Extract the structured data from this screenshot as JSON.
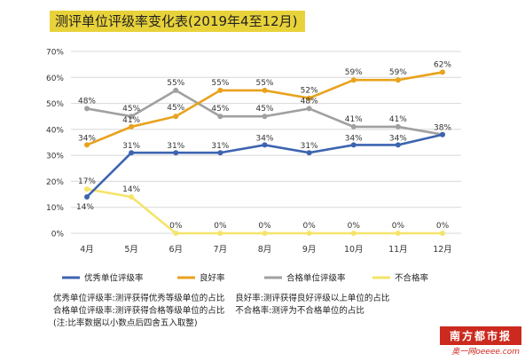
{
  "title": "测评单位评级率变化表(2019年4至12月)",
  "chart_data": {
    "type": "line",
    "title": "测评单位评级率变化表(2019年4至12月)",
    "categories": [
      "4月",
      "5月",
      "6月",
      "7月",
      "8月",
      "9月",
      "10月",
      "11月",
      "12月"
    ],
    "y_ticks": [
      "0%",
      "10%",
      "20%",
      "30%",
      "40%",
      "50%",
      "60%",
      "70%"
    ],
    "ylim": [
      0,
      70
    ],
    "legend_position": "bottom",
    "series": [
      {
        "name": "优秀单位评级率",
        "color": "#3d64b0",
        "values": [
          14,
          31,
          31,
          31,
          34,
          31,
          34,
          34,
          38
        ],
        "labels": [
          "14%",
          "31%",
          "31%",
          "31%",
          "34%",
          "31%",
          "34%",
          "34%",
          "38%"
        ]
      },
      {
        "name": "良好率",
        "color": "#e8a21c",
        "values": [
          34,
          41,
          45,
          55,
          55,
          52,
          59,
          59,
          62
        ],
        "labels": [
          "34%",
          "41%",
          "45%",
          "55%",
          "55%",
          "52%",
          "59%",
          "59%",
          "62%"
        ]
      },
      {
        "name": "合格单位评级率",
        "color": "#a0a0a0",
        "values": [
          48,
          45,
          55,
          45,
          45,
          48,
          41,
          41,
          38
        ],
        "labels": [
          "48%",
          "45%",
          "55%",
          "45%",
          "45%",
          "48%",
          "41%",
          "41%",
          ""
        ]
      },
      {
        "name": "不合格率",
        "color": "#f5e46a",
        "values": [
          17,
          14,
          0,
          0,
          0,
          0,
          0,
          0,
          0
        ],
        "labels": [
          "17%",
          "14%",
          "0%",
          "0%",
          "0%",
          "0%",
          "0%",
          "0%",
          "0%"
        ]
      }
    ]
  },
  "notes": {
    "line1a": "优秀单位评级率:测评获得优秀等级单位的占比",
    "line1b": "良好率:测评获得良好评级以上单位的占比",
    "line2a": "合格单位评级率:测评获得合格等级单位的占比",
    "line2b": "不合格率:测评为不合格单位的占比",
    "line3": "(注:比率数据以小数点后四舍五入取整)"
  },
  "logo": {
    "main": "南方都市报",
    "sub": "奥一网oeeee.com"
  }
}
